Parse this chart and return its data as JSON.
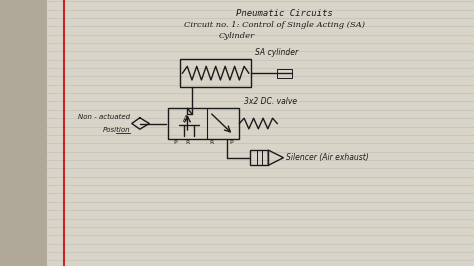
{
  "bg_color": "#d8d5c8",
  "page_color": "#e8e6dc",
  "line_color": "#1a1a1a",
  "notebook_line_color": "#b0b0b0",
  "margin_line_color": "#cc2222",
  "title1": "Pneumatic Circuits",
  "title2": "Circuit no. 1: Control of Single Acting (SA)",
  "title3": "Cylinder",
  "label_sa": "SA cylinder",
  "label_valve": "3x2 DC. valve",
  "label_nonact": "Non - actuated",
  "label_position": "Position",
  "label_silencer": "Silencer (Air exhaust)",
  "label_A": "A",
  "label_P1": "P",
  "label_R1": "R",
  "label_R2": "R",
  "label_P2": "P",
  "figsize": [
    4.74,
    2.66
  ],
  "dpi": 100
}
